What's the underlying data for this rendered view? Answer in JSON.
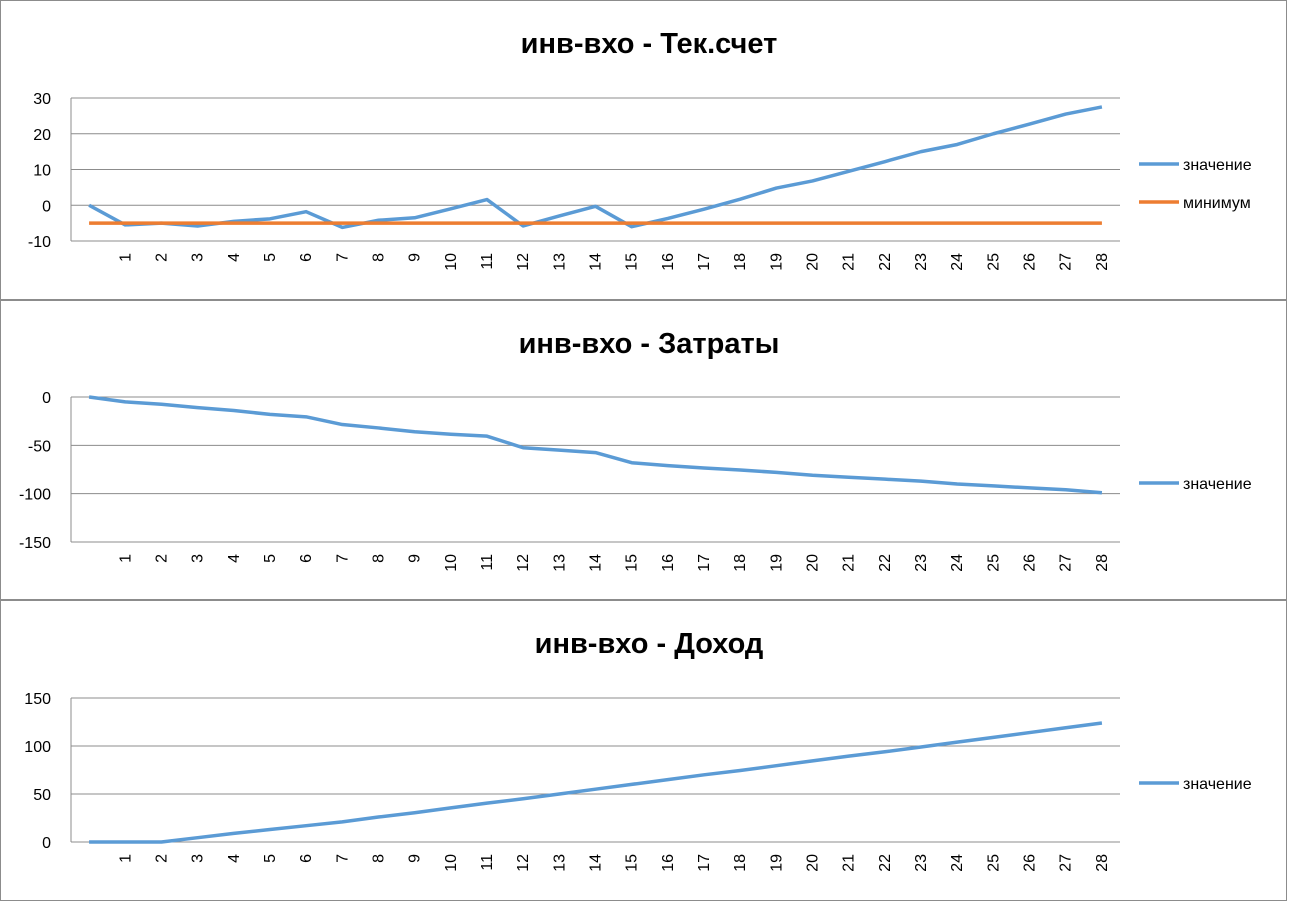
{
  "chart_data": [
    {
      "type": "line",
      "title": "инв-вхо - Тек.счет",
      "xlabel": "",
      "ylabel": "",
      "x_tick_labels": [
        "1",
        "2",
        "3",
        "4",
        "5",
        "6",
        "7",
        "8",
        "9",
        "10",
        "11",
        "12",
        "13",
        "14",
        "15",
        "16",
        "17",
        "18",
        "19",
        "20",
        "21",
        "22",
        "23",
        "24",
        "25",
        "26",
        "27",
        "28"
      ],
      "ylim": [
        -10,
        30
      ],
      "y_ticks": [
        -10,
        0,
        10,
        20,
        30
      ],
      "grid": true,
      "legend": "right",
      "series": [
        {
          "name": "значение",
          "color": "#5b9bd5",
          "values": [
            0,
            -5.5,
            -5,
            -5.8,
            -4.5,
            -3.8,
            -1.8,
            -6.2,
            -4.2,
            -3.5,
            -1,
            1.6,
            -5.8,
            -3,
            -0.3,
            -6,
            -3.7,
            -1.1,
            1.7,
            4.8,
            6.8,
            9.5,
            12.2,
            15,
            17,
            20,
            22.7,
            25.5,
            27.5
          ]
        },
        {
          "name": "минимум",
          "color": "#ed7d31",
          "values": [
            -5,
            -5,
            -5,
            -5,
            -5,
            -5,
            -5,
            -5,
            -5,
            -5,
            -5,
            -5,
            -5,
            -5,
            -5,
            -5,
            -5,
            -5,
            -5,
            -5,
            -5,
            -5,
            -5,
            -5,
            -5,
            -5,
            -5,
            -5,
            -5
          ]
        }
      ]
    },
    {
      "type": "line",
      "title": "инв-вхо - Затраты",
      "xlabel": "",
      "ylabel": "",
      "x_tick_labels": [
        "1",
        "2",
        "3",
        "4",
        "5",
        "6",
        "7",
        "8",
        "9",
        "10",
        "11",
        "12",
        "13",
        "14",
        "15",
        "16",
        "17",
        "18",
        "19",
        "20",
        "21",
        "22",
        "23",
        "24",
        "25",
        "26",
        "27",
        "28"
      ],
      "ylim": [
        -150,
        0
      ],
      "y_ticks": [
        -150,
        -100,
        -50,
        0
      ],
      "grid": true,
      "legend": "right",
      "series": [
        {
          "name": "значение",
          "color": "#5b9bd5",
          "values": [
            0,
            -5,
            -7.5,
            -11,
            -14,
            -18,
            -20.5,
            -28.5,
            -32,
            -36,
            -38.5,
            -40.5,
            -52.5,
            -55,
            -57.5,
            -68,
            -71,
            -73.5,
            -75.5,
            -78,
            -81,
            -83,
            -85,
            -87,
            -90,
            -92,
            -94,
            -96,
            -99
          ]
        }
      ]
    },
    {
      "type": "line",
      "title": "инв-вхо - Доход",
      "xlabel": "",
      "ylabel": "",
      "x_tick_labels": [
        "1",
        "2",
        "3",
        "4",
        "5",
        "6",
        "7",
        "8",
        "9",
        "10",
        "11",
        "12",
        "13",
        "14",
        "15",
        "16",
        "17",
        "18",
        "19",
        "20",
        "21",
        "22",
        "23",
        "24",
        "25",
        "26",
        "27",
        "28"
      ],
      "ylim": [
        0,
        150
      ],
      "y_ticks": [
        0,
        50,
        100,
        150
      ],
      "grid": true,
      "legend": "right",
      "series": [
        {
          "name": "значение",
          "color": "#5b9bd5",
          "values": [
            0,
            0,
            0,
            4.5,
            9,
            13,
            17,
            21,
            26,
            30.5,
            35.5,
            40.5,
            45,
            50,
            55,
            60,
            65,
            70,
            74.5,
            79.5,
            84.5,
            89.5,
            94,
            99,
            104,
            109,
            114,
            119,
            124
          ]
        }
      ]
    }
  ]
}
